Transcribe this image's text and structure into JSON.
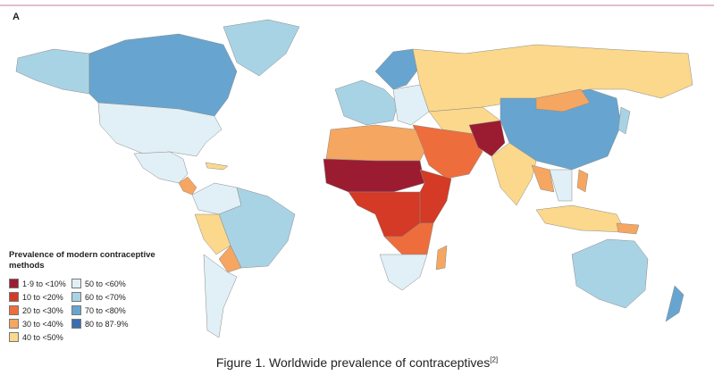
{
  "panel_label": "A",
  "legend": {
    "title": "Prevalence of modern contraceptive methods",
    "items": [
      {
        "label": "1·9 to <10%",
        "color": "#9b1c31"
      },
      {
        "label": "10 to <20%",
        "color": "#d43a25"
      },
      {
        "label": "20 to <30%",
        "color": "#ee6d3c"
      },
      {
        "label": "30 to <40%",
        "color": "#f5a660"
      },
      {
        "label": "40 to <50%",
        "color": "#fbd88b"
      },
      {
        "label": "50 to <60%",
        "color": "#e0f0f6"
      },
      {
        "label": "60 to <70%",
        "color": "#a8d3e5"
      },
      {
        "label": "70 to <80%",
        "color": "#67a5d0"
      },
      {
        "label": "80 to 87·9%",
        "color": "#3b6eae"
      }
    ]
  },
  "caption": {
    "text": "Figure 1. Worldwide prevalence of contraceptives",
    "reference": "[2]"
  }
}
